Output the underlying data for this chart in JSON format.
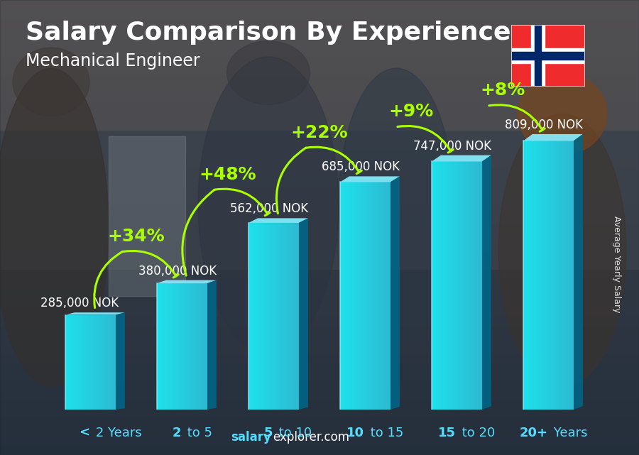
{
  "title": "Salary Comparison By Experience",
  "subtitle": "Mechanical Engineer",
  "categories": [
    "< 2 Years",
    "2 to 5",
    "5 to 10",
    "10 to 15",
    "15 to 20",
    "20+ Years"
  ],
  "values": [
    285000,
    380000,
    562000,
    685000,
    747000,
    809000
  ],
  "labels": [
    "285,000 NOK",
    "380,000 NOK",
    "562,000 NOK",
    "685,000 NOK",
    "747,000 NOK",
    "809,000 NOK"
  ],
  "pct_changes": [
    "+34%",
    "+48%",
    "+22%",
    "+9%",
    "+8%"
  ],
  "bar_face_left": "#55ddff",
  "bar_face_right": "#1ab0d0",
  "bar_top_color": "#80eeff",
  "bar_side_color": "#0077aa",
  "bg_color": "#5a6a72",
  "overlay_color": "#2a3540",
  "title_color": "#ffffff",
  "subtitle_color": "#ffffff",
  "label_color": "#ffffff",
  "pct_color": "#aaff00",
  "xlabel_color": "#55ddff",
  "ylabel_text": "Average Yearly Salary",
  "footer_salary_color": "#55ddff",
  "footer_explorer_color": "#ffffff",
  "title_fontsize": 26,
  "subtitle_fontsize": 17,
  "label_fontsize": 12,
  "pct_fontsize": 18,
  "xlabel_fontsize": 13,
  "ylabel_fontsize": 9,
  "figsize": [
    9.0,
    6.41
  ],
  "dpi": 100
}
